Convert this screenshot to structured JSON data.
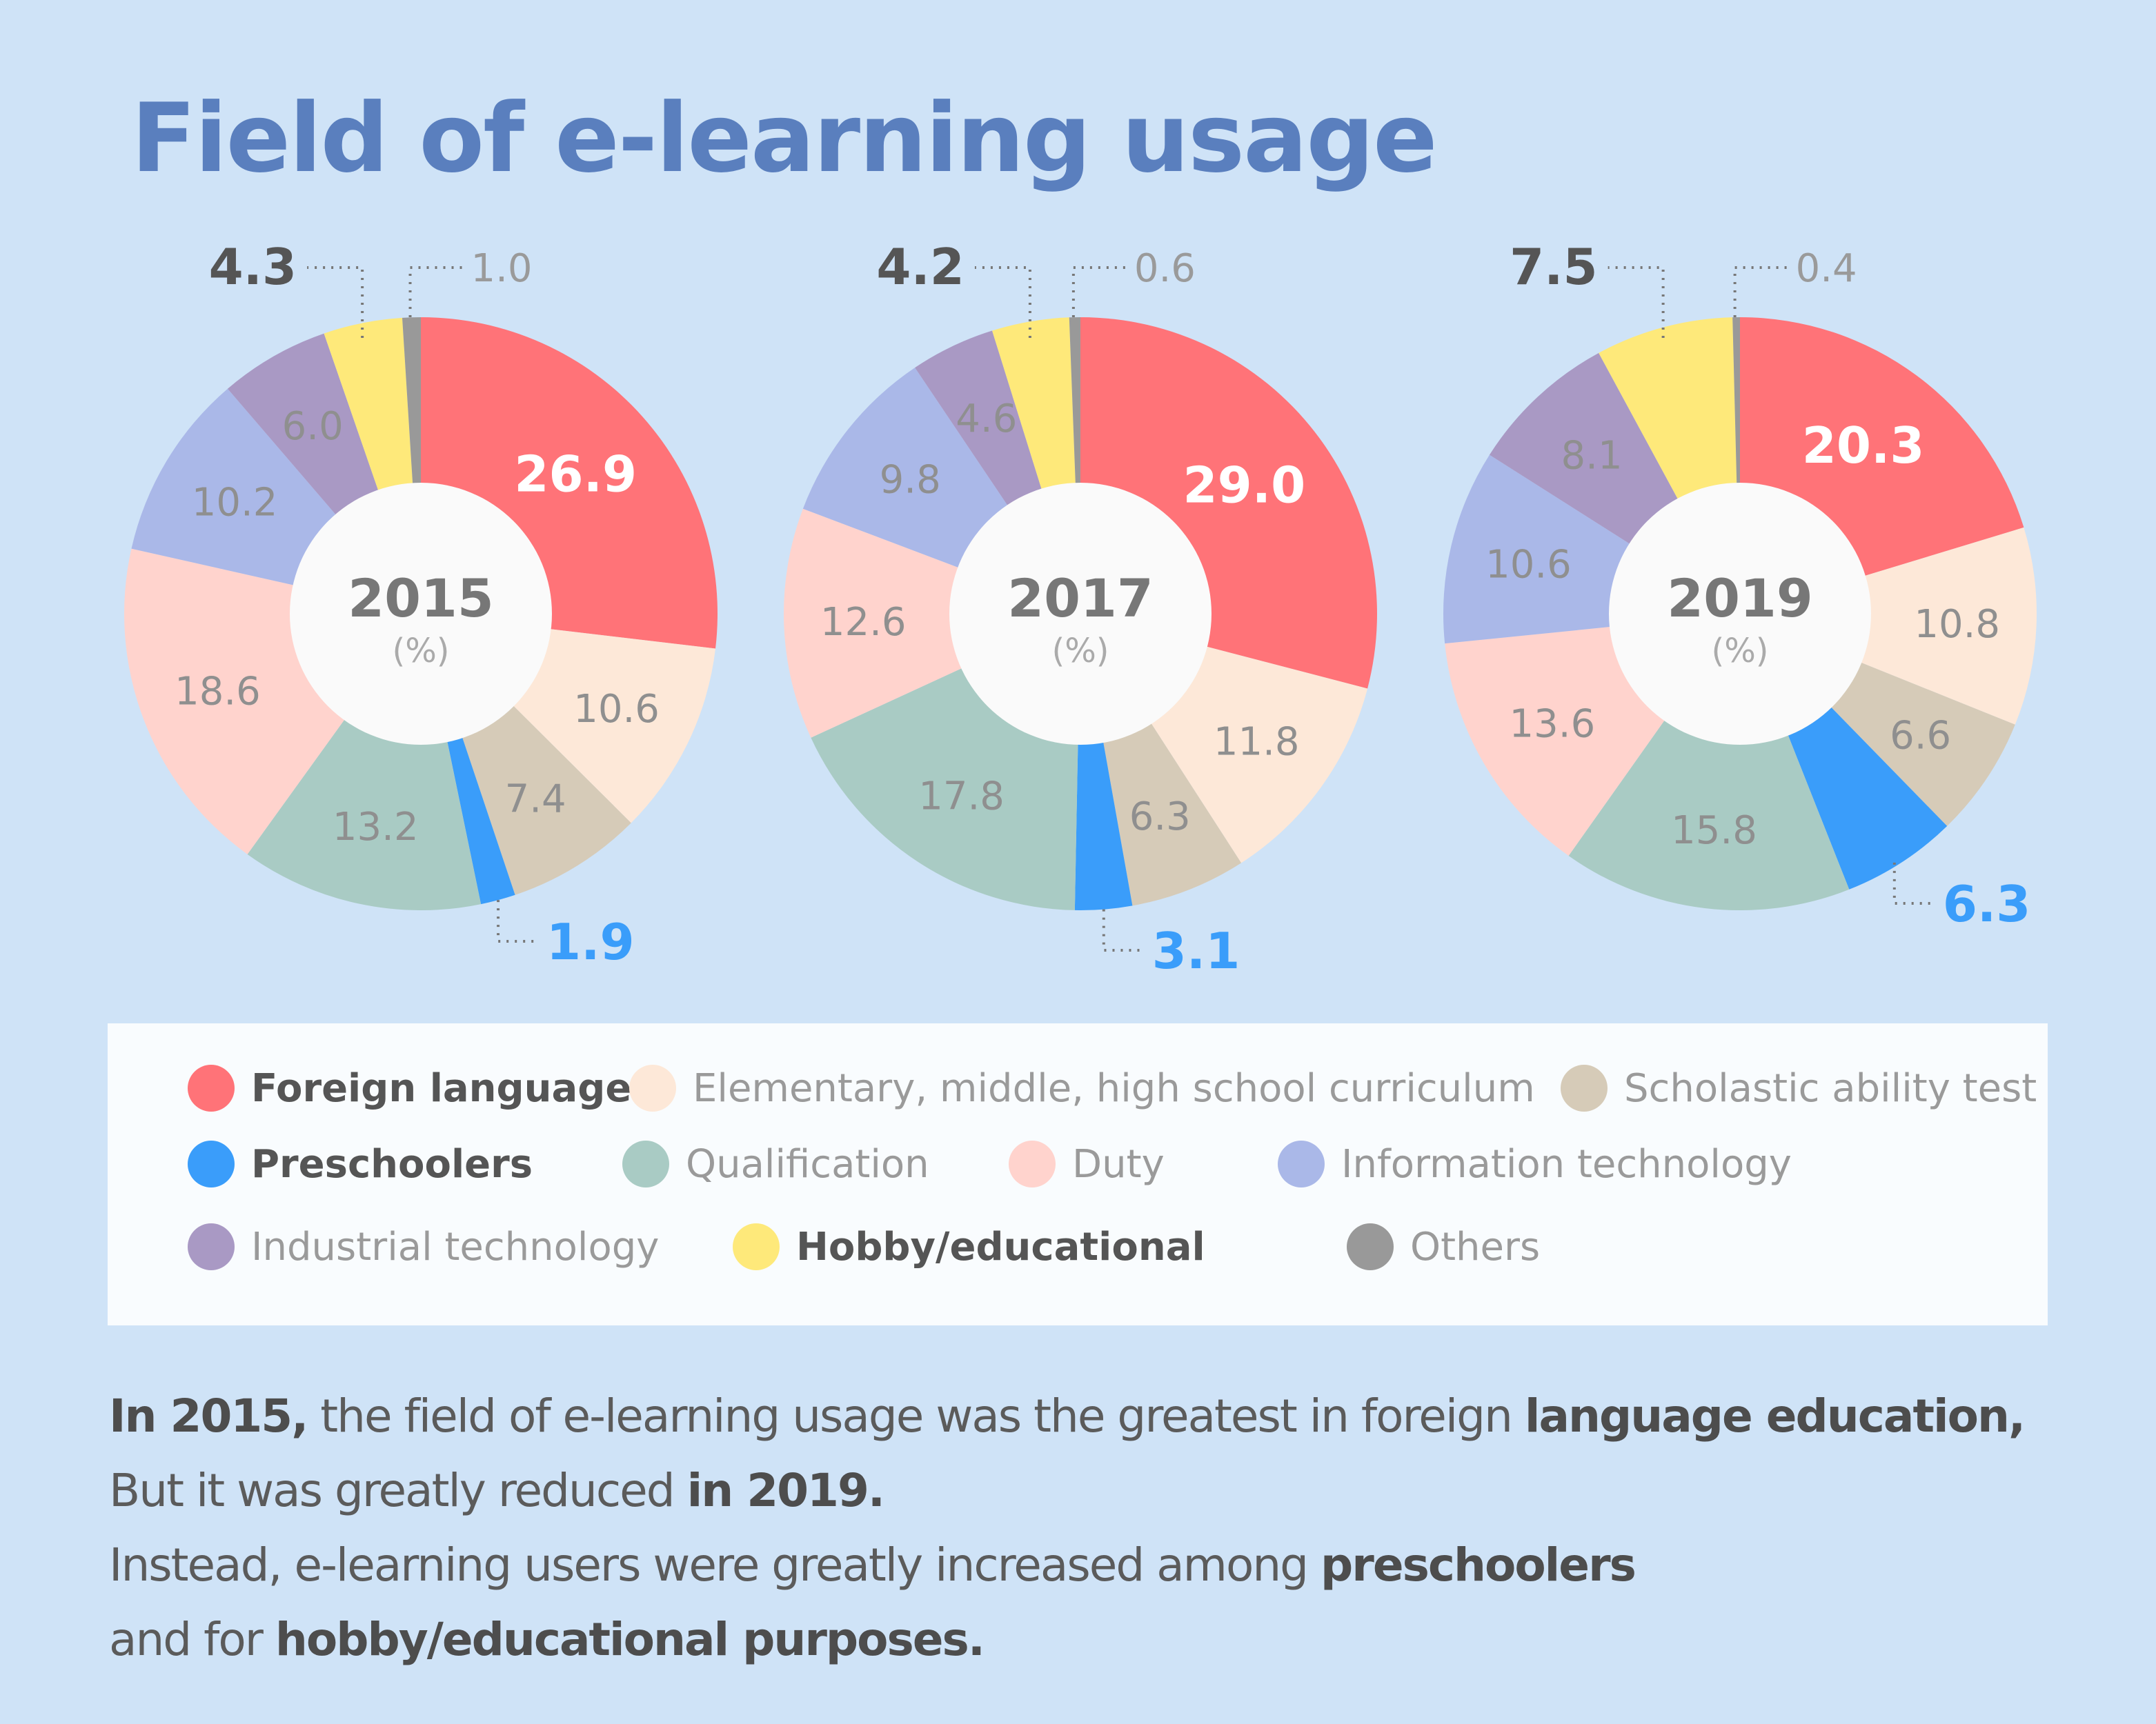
{
  "title": "Field of e-learning usage",
  "chart_data": [
    {
      "type": "pie",
      "donut": true,
      "title": "2015",
      "unit": "(%)",
      "categories": [
        "Foreign language",
        "Elementary, middle, high school curriculum",
        "Scholastic ability test",
        "Preschoolers",
        "Qualification",
        "Duty",
        "Information technology",
        "Industrial technology",
        "Hobby/educational",
        "Others"
      ],
      "values": [
        26.9,
        10.6,
        7.4,
        1.9,
        13.2,
        18.6,
        10.2,
        6.0,
        4.3,
        1.0
      ]
    },
    {
      "type": "pie",
      "donut": true,
      "title": "2017",
      "unit": "(%)",
      "categories": [
        "Foreign language",
        "Elementary, middle, high school curriculum",
        "Scholastic ability test",
        "Preschoolers",
        "Qualification",
        "Duty",
        "Information technology",
        "Industrial technology",
        "Hobby/educational",
        "Others"
      ],
      "values": [
        29.0,
        11.8,
        6.3,
        3.1,
        17.8,
        12.6,
        9.8,
        4.6,
        4.2,
        0.6
      ]
    },
    {
      "type": "pie",
      "donut": true,
      "title": "2019",
      "unit": "(%)",
      "categories": [
        "Foreign language",
        "Elementary, middle, high school curriculum",
        "Scholastic ability test",
        "Preschoolers",
        "Qualification",
        "Duty",
        "Information technology",
        "Industrial technology",
        "Hobby/educational",
        "Others"
      ],
      "values": [
        20.3,
        10.8,
        6.6,
        6.3,
        15.8,
        13.6,
        10.6,
        8.1,
        7.5,
        0.4
      ]
    }
  ],
  "colors": [
    "#ff7378",
    "#fde8d8",
    "#d6cbb8",
    "#3a9dfa",
    "#a9cbc4",
    "#ffd3cd",
    "#aab8e8",
    "#a999c4",
    "#fee97a",
    "#999999"
  ],
  "legend": [
    {
      "label": "Foreign language",
      "bold": true
    },
    {
      "label": "Elementary, middle, high school curriculum",
      "bold": false
    },
    {
      "label": "Scholastic ability test",
      "bold": false
    },
    {
      "label": "Preschoolers",
      "bold": true
    },
    {
      "label": "Qualification",
      "bold": false
    },
    {
      "label": "Duty",
      "bold": false
    },
    {
      "label": "Information technology",
      "bold": false
    },
    {
      "label": "Industrial technology",
      "bold": false
    },
    {
      "label": "Hobby/educational",
      "bold": true
    },
    {
      "label": "Others",
      "bold": false
    }
  ],
  "note": {
    "l1a": "In 2015,",
    "l1b": " the field of e-learning usage was the greatest in foreign ",
    "l1c": "language education,",
    "l2a": "But it was greatly reduced ",
    "l2b": "in 2019.",
    "l3a": "Instead, e-learning users were greatly increased among ",
    "l3b": "preschoolers",
    "l4a": "and for ",
    "l4b": "hobby/educational purposes."
  }
}
